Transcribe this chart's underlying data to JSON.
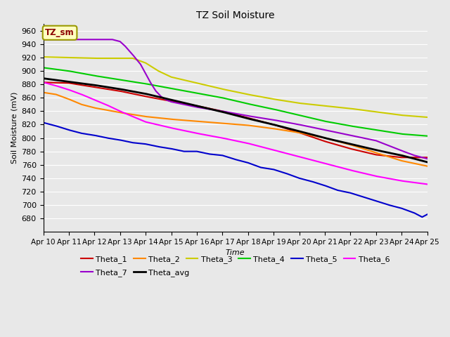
{
  "title": "TZ Soil Moisture",
  "ylabel": "Soil Moisture (mV)",
  "xlabel": "Time",
  "ylim": [
    660,
    970
  ],
  "yticks": [
    680,
    700,
    720,
    740,
    760,
    780,
    800,
    820,
    840,
    860,
    880,
    900,
    920,
    940,
    960
  ],
  "date_labels": [
    "Apr 10",
    "Apr 11",
    "Apr 12",
    "Apr 13",
    "Apr 14",
    "Apr 15",
    "Apr 16",
    "Apr 17",
    "Apr 18",
    "Apr 19",
    "Apr 20",
    "Apr 21",
    "Apr 22",
    "Apr 23",
    "Apr 24",
    "Apr 25"
  ],
  "n_points": 150,
  "bg_color": "#e8e8e8",
  "fig_color": "#e8e8e8",
  "legend_label": "TZ_sm",
  "series": {
    "Theta_1": {
      "color": "#cc0000",
      "lw": 1.5,
      "key_points": [
        [
          0,
          883
        ],
        [
          10,
          882
        ],
        [
          20,
          876
        ],
        [
          30,
          870
        ],
        [
          40,
          862
        ],
        [
          50,
          855
        ],
        [
          60,
          848
        ],
        [
          70,
          840
        ],
        [
          80,
          830
        ],
        [
          90,
          820
        ],
        [
          100,
          808
        ],
        [
          110,
          795
        ],
        [
          120,
          784
        ],
        [
          130,
          775
        ],
        [
          140,
          771
        ],
        [
          150,
          771
        ]
      ]
    },
    "Theta_2": {
      "color": "#ff8800",
      "lw": 1.5,
      "key_points": [
        [
          0,
          868
        ],
        [
          5,
          865
        ],
        [
          10,
          858
        ],
        [
          15,
          850
        ],
        [
          20,
          845
        ],
        [
          30,
          838
        ],
        [
          40,
          832
        ],
        [
          50,
          828
        ],
        [
          60,
          825
        ],
        [
          70,
          822
        ],
        [
          80,
          819
        ],
        [
          90,
          814
        ],
        [
          100,
          808
        ],
        [
          110,
          800
        ],
        [
          120,
          790
        ],
        [
          130,
          778
        ],
        [
          140,
          766
        ],
        [
          150,
          758
        ]
      ]
    },
    "Theta_3": {
      "color": "#cccc00",
      "lw": 1.5,
      "key_points": [
        [
          0,
          921
        ],
        [
          10,
          920
        ],
        [
          20,
          919
        ],
        [
          30,
          919
        ],
        [
          35,
          919
        ],
        [
          40,
          912
        ],
        [
          45,
          900
        ],
        [
          50,
          891
        ],
        [
          60,
          882
        ],
        [
          70,
          873
        ],
        [
          80,
          865
        ],
        [
          90,
          858
        ],
        [
          100,
          852
        ],
        [
          110,
          848
        ],
        [
          120,
          844
        ],
        [
          130,
          839
        ],
        [
          140,
          834
        ],
        [
          150,
          831
        ]
      ]
    },
    "Theta_4": {
      "color": "#00cc00",
      "lw": 1.5,
      "key_points": [
        [
          0,
          905
        ],
        [
          10,
          900
        ],
        [
          20,
          893
        ],
        [
          30,
          887
        ],
        [
          40,
          881
        ],
        [
          50,
          874
        ],
        [
          60,
          867
        ],
        [
          70,
          860
        ],
        [
          80,
          851
        ],
        [
          90,
          843
        ],
        [
          100,
          834
        ],
        [
          110,
          825
        ],
        [
          120,
          818
        ],
        [
          130,
          812
        ],
        [
          140,
          806
        ],
        [
          150,
          803
        ]
      ]
    },
    "Theta_5": {
      "color": "#0000cc",
      "lw": 1.5,
      "key_points": [
        [
          0,
          823
        ],
        [
          5,
          818
        ],
        [
          10,
          812
        ],
        [
          15,
          807
        ],
        [
          20,
          804
        ],
        [
          25,
          800
        ],
        [
          30,
          797
        ],
        [
          35,
          793
        ],
        [
          40,
          791
        ],
        [
          45,
          787
        ],
        [
          50,
          784
        ],
        [
          55,
          780
        ],
        [
          60,
          780
        ],
        [
          65,
          776
        ],
        [
          70,
          774
        ],
        [
          75,
          768
        ],
        [
          80,
          763
        ],
        [
          85,
          756
        ],
        [
          90,
          753
        ],
        [
          95,
          747
        ],
        [
          100,
          740
        ],
        [
          105,
          735
        ],
        [
          110,
          729
        ],
        [
          115,
          722
        ],
        [
          120,
          718
        ],
        [
          125,
          712
        ],
        [
          130,
          706
        ],
        [
          135,
          700
        ],
        [
          140,
          695
        ],
        [
          145,
          688
        ],
        [
          148,
          682
        ],
        [
          150,
          686
        ],
        [
          152,
          690
        ]
      ]
    },
    "Theta_6": {
      "color": "#ff00ff",
      "lw": 1.5,
      "key_points": [
        [
          0,
          883
        ],
        [
          5,
          878
        ],
        [
          10,
          872
        ],
        [
          15,
          865
        ],
        [
          20,
          857
        ],
        [
          25,
          849
        ],
        [
          30,
          840
        ],
        [
          35,
          832
        ],
        [
          40,
          824
        ],
        [
          50,
          815
        ],
        [
          60,
          807
        ],
        [
          70,
          800
        ],
        [
          80,
          792
        ],
        [
          90,
          782
        ],
        [
          100,
          772
        ],
        [
          110,
          762
        ],
        [
          120,
          752
        ],
        [
          130,
          743
        ],
        [
          140,
          736
        ],
        [
          150,
          731
        ]
      ]
    },
    "Theta_7": {
      "color": "#9900cc",
      "lw": 1.5,
      "key_points": [
        [
          0,
          947
        ],
        [
          5,
          947
        ],
        [
          10,
          947
        ],
        [
          15,
          947
        ],
        [
          20,
          947
        ],
        [
          25,
          947
        ],
        [
          27,
          947
        ],
        [
          30,
          944
        ],
        [
          32,
          937
        ],
        [
          35,
          924
        ],
        [
          38,
          910
        ],
        [
          40,
          896
        ],
        [
          42,
          882
        ],
        [
          44,
          870
        ],
        [
          46,
          862
        ],
        [
          48,
          857
        ],
        [
          50,
          854
        ],
        [
          55,
          850
        ],
        [
          60,
          846
        ],
        [
          70,
          840
        ],
        [
          80,
          833
        ],
        [
          90,
          827
        ],
        [
          100,
          820
        ],
        [
          110,
          812
        ],
        [
          120,
          804
        ],
        [
          130,
          796
        ],
        [
          140,
          781
        ],
        [
          145,
          774
        ],
        [
          150,
          769
        ]
      ]
    },
    "Theta_avg": {
      "color": "#000000",
      "lw": 2.0,
      "key_points": [
        [
          0,
          889
        ],
        [
          10,
          884
        ],
        [
          20,
          879
        ],
        [
          30,
          873
        ],
        [
          40,
          866
        ],
        [
          50,
          857
        ],
        [
          60,
          848
        ],
        [
          70,
          839
        ],
        [
          80,
          829
        ],
        [
          90,
          820
        ],
        [
          100,
          810
        ],
        [
          110,
          800
        ],
        [
          120,
          791
        ],
        [
          130,
          782
        ],
        [
          140,
          774
        ],
        [
          150,
          764
        ]
      ]
    }
  },
  "legend_row1": [
    "Theta_1",
    "Theta_2",
    "Theta_3",
    "Theta_4",
    "Theta_5",
    "Theta_6"
  ],
  "legend_row2": [
    "Theta_7",
    "Theta_avg"
  ]
}
